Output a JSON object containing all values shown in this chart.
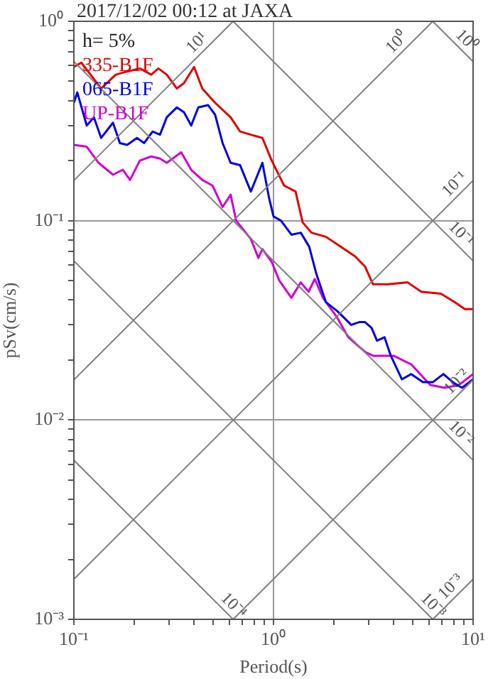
{
  "chart_data": {
    "type": "line",
    "title": "2017/12/02 00:12 at JAXA",
    "xlabel": "Period(s)",
    "ylabel": "pSv(cm/s)",
    "log": "xy",
    "xlim": [
      0.1,
      10
    ],
    "ylim": [
      0.001,
      1
    ],
    "xticks": [
      {
        "value": 0.1,
        "label": "10⁻¹"
      },
      {
        "value": 0.2,
        "label": null
      },
      {
        "value": 0.3,
        "label": null
      },
      {
        "value": 0.4,
        "label": null
      },
      {
        "value": 0.5,
        "label": null
      },
      {
        "value": 0.6,
        "label": null
      },
      {
        "value": 0.7,
        "label": null
      },
      {
        "value": 0.8,
        "label": null
      },
      {
        "value": 0.9,
        "label": null
      },
      {
        "value": 1,
        "label": "10⁰"
      },
      {
        "value": 2,
        "label": null
      },
      {
        "value": 3,
        "label": null
      },
      {
        "value": 4,
        "label": null
      },
      {
        "value": 5,
        "label": null
      },
      {
        "value": 6,
        "label": null
      },
      {
        "value": 7,
        "label": null
      },
      {
        "value": 8,
        "label": null
      },
      {
        "value": 9,
        "label": null
      },
      {
        "value": 10,
        "label": "10¹"
      }
    ],
    "yticks": [
      {
        "value": 0.001,
        "label": "10⁻³"
      },
      {
        "value": 0.002,
        "label": null
      },
      {
        "value": 0.003,
        "label": null
      },
      {
        "value": 0.004,
        "label": null
      },
      {
        "value": 0.005,
        "label": null
      },
      {
        "value": 0.006,
        "label": null
      },
      {
        "value": 0.007,
        "label": null
      },
      {
        "value": 0.008,
        "label": null
      },
      {
        "value": 0.009,
        "label": null
      },
      {
        "value": 0.01,
        "label": "10⁻²"
      },
      {
        "value": 0.02,
        "label": null
      },
      {
        "value": 0.03,
        "label": null
      },
      {
        "value": 0.04,
        "label": null
      },
      {
        "value": 0.05,
        "label": null
      },
      {
        "value": 0.06,
        "label": null
      },
      {
        "value": 0.07,
        "label": null
      },
      {
        "value": 0.08,
        "label": null
      },
      {
        "value": 0.09,
        "label": null
      },
      {
        "value": 0.1,
        "label": "10⁻¹"
      },
      {
        "value": 0.2,
        "label": null
      },
      {
        "value": 0.3,
        "label": null
      },
      {
        "value": 0.4,
        "label": null
      },
      {
        "value": 0.5,
        "label": null
      },
      {
        "value": 0.6,
        "label": null
      },
      {
        "value": 0.7,
        "label": null
      },
      {
        "value": 0.8,
        "label": null
      },
      {
        "value": 0.9,
        "label": null
      },
      {
        "value": 1,
        "label": "10⁰"
      }
    ],
    "grid": true,
    "legend": "top left",
    "marker": "none",
    "line_style": "solid",
    "annotations": [
      "h= 5%",
      {
        "text": "10¹",
        "x": 0.45,
        "y": 0.72
      },
      {
        "text": "10⁰",
        "x": 4.5,
        "y": 0.72
      },
      {
        "text": "10⁰",
        "x": 8.5,
        "y": 0.74
      },
      {
        "text": "10⁻¹",
        "x": 8.8,
        "y": 0.14
      },
      {
        "text": "10⁻¹",
        "x": 8,
        "y": 0.079
      },
      {
        "text": "10⁻²",
        "x": 9,
        "y": 0.0143
      },
      {
        "text": "10⁻²",
        "x": 8,
        "y": 0.0079
      },
      {
        "text": "10⁻³",
        "x": 8.4,
        "y": 0.00134
      },
      {
        "text": "10⁻³",
        "x": 5.8,
        "y": 0.00108
      },
      {
        "text": "10⁻⁴",
        "x": 0.58,
        "y": 0.00108
      }
    ],
    "series": [
      {
        "color": "#808080",
        "x": [
          0.1,
          0.628
        ],
        "values": [
          0.159,
          1
        ]
      },
      {
        "color": "#808080",
        "x": [
          0.1,
          6.28
        ],
        "values": [
          0.0159,
          1
        ]
      },
      {
        "color": "#808080",
        "x": [
          0.1,
          10
        ],
        "values": [
          0.00159,
          0.159
        ]
      },
      {
        "color": "#808080",
        "x": [
          0.628,
          10
        ],
        "values": [
          0.001,
          0.0159
        ]
      },
      {
        "color": "#808080",
        "x": [
          6.28,
          10
        ],
        "values": [
          0.001,
          0.00159
        ]
      },
      {
        "color": "#808080",
        "x": [
          6.28,
          10
        ],
        "values": [
          1,
          0.628
        ]
      },
      {
        "color": "#808080",
        "x": [
          0.628,
          10
        ],
        "values": [
          1,
          0.0628
        ]
      },
      {
        "color": "#808080",
        "x": [
          0.1,
          10
        ],
        "values": [
          0.628,
          0.00628
        ]
      },
      {
        "color": "#808080",
        "x": [
          0.1,
          6.28
        ],
        "values": [
          0.0628,
          0.001
        ]
      },
      {
        "color": "#808080",
        "x": [
          0.1,
          0.628
        ],
        "values": [
          0.00628,
          0.001
        ]
      },
      {
        "name": "335-B1F",
        "color": "#e00000",
        "x": [
          0.1,
          0.109,
          0.137,
          0.162,
          0.185,
          0.214,
          0.244,
          0.265,
          0.292,
          0.328,
          0.356,
          0.4,
          0.44,
          0.51,
          0.61,
          0.68,
          0.77,
          0.88,
          0.98,
          1.13,
          1.29,
          1.4,
          1.55,
          1.83,
          2.17,
          2.57,
          2.87,
          3.15,
          3.75,
          4.7,
          5.5,
          6.9,
          8.1,
          9.1,
          10
        ],
        "values": [
          0.59,
          0.62,
          0.46,
          0.54,
          0.56,
          0.58,
          0.54,
          0.58,
          0.54,
          0.46,
          0.49,
          0.59,
          0.46,
          0.39,
          0.33,
          0.28,
          0.27,
          0.26,
          0.2,
          0.15,
          0.14,
          0.098,
          0.087,
          0.083,
          0.074,
          0.066,
          0.059,
          0.048,
          0.048,
          0.049,
          0.044,
          0.043,
          0.039,
          0.036,
          0.036
        ]
      },
      {
        "name": "065-B1F",
        "color": "#0000e0",
        "x": [
          0.1,
          0.104,
          0.116,
          0.126,
          0.137,
          0.157,
          0.17,
          0.185,
          0.207,
          0.225,
          0.248,
          0.27,
          0.292,
          0.328,
          0.356,
          0.387,
          0.42,
          0.47,
          0.51,
          0.556,
          0.61,
          0.68,
          0.77,
          0.88,
          0.95,
          1.0,
          1.09,
          1.23,
          1.37,
          1.51,
          1.64,
          1.83,
          2.1,
          2.45,
          2.7,
          2.87,
          3.1,
          3.3,
          3.6,
          3.87,
          4.4,
          4.9,
          5.6,
          6.3,
          7.1,
          7.9,
          8.8,
          10
        ],
        "values": [
          0.39,
          0.44,
          0.3,
          0.33,
          0.26,
          0.31,
          0.245,
          0.24,
          0.26,
          0.245,
          0.28,
          0.27,
          0.33,
          0.37,
          0.35,
          0.3,
          0.37,
          0.38,
          0.34,
          0.245,
          0.195,
          0.19,
          0.14,
          0.195,
          0.13,
          0.105,
          0.1,
          0.085,
          0.087,
          0.074,
          0.054,
          0.039,
          0.035,
          0.03,
          0.031,
          0.031,
          0.029,
          0.025,
          0.026,
          0.021,
          0.016,
          0.017,
          0.0155,
          0.0155,
          0.017,
          0.0155,
          0.0145,
          0.016
        ]
      },
      {
        "name": "UP-B1F",
        "color": "#d000d0",
        "x": [
          0.1,
          0.116,
          0.133,
          0.157,
          0.176,
          0.191,
          0.214,
          0.244,
          0.27,
          0.292,
          0.345,
          0.387,
          0.44,
          0.495,
          0.556,
          0.61,
          0.65,
          0.77,
          0.84,
          0.88,
          0.98,
          1.07,
          1.23,
          1.37,
          1.5,
          1.61,
          1.77,
          2.07,
          2.37,
          2.87,
          3.15,
          4.0,
          4.9,
          6.1,
          7.2,
          8.5,
          10
        ],
        "values": [
          0.24,
          0.235,
          0.195,
          0.17,
          0.18,
          0.16,
          0.2,
          0.21,
          0.205,
          0.195,
          0.22,
          0.18,
          0.16,
          0.15,
          0.117,
          0.135,
          0.1,
          0.081,
          0.065,
          0.072,
          0.062,
          0.05,
          0.041,
          0.049,
          0.044,
          0.051,
          0.041,
          0.033,
          0.026,
          0.022,
          0.021,
          0.021,
          0.019,
          0.015,
          0.0145,
          0.015,
          0.017
        ]
      }
    ]
  }
}
